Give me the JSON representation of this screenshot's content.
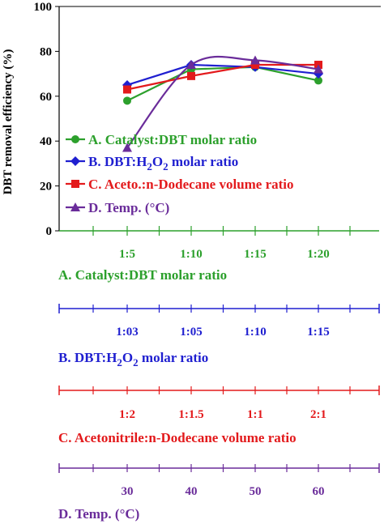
{
  "chart_data": {
    "type": "line",
    "ylabel": "DBT removal efficiency (%)",
    "ylim": [
      0,
      100
    ],
    "yticks": [
      "0",
      "20",
      "40",
      "60",
      "80",
      "100"
    ],
    "grid": false,
    "legend_position": "lower-left",
    "position_labels": [
      "1",
      "2",
      "3",
      "4"
    ],
    "axes": [
      {
        "id": "A",
        "title": "A. Catalyst:DBT molar ratio",
        "color": "#2ca02c",
        "tick_labels": [
          "1:5",
          "1:10",
          "1:15",
          "1:20"
        ]
      },
      {
        "id": "B",
        "title_main": "B. DBT:H",
        "title_sub1": "2",
        "title_mid": "O",
        "title_sub2": "2",
        "title_end": " molar ratio",
        "color": "#1f1fd0",
        "tick_labels": [
          "1:03",
          "1:05",
          "1:10",
          "1:15"
        ]
      },
      {
        "id": "C",
        "title": "C. Acetonitrile:n-Dodecane volume ratio",
        "color": "#e31a1c",
        "tick_labels": [
          "1:2",
          "1:1.5",
          "1:1",
          "2:1"
        ]
      },
      {
        "id": "D",
        "title": "D. Temp. (°C)",
        "color": "#6a2c9a",
        "tick_labels": [
          "30",
          "40",
          "50",
          "60"
        ]
      }
    ],
    "series": [
      {
        "name": "A. Catalyst:DBT molar ratio",
        "color": "#2ca02c",
        "marker": "circle",
        "smooth": false,
        "values": [
          58,
          72,
          73,
          67
        ]
      },
      {
        "name_main": "B. DBT:H",
        "name_sub1": "2",
        "name_mid": "O",
        "name_sub2": "2",
        "name_end": " molar ratio",
        "color": "#1f1fd0",
        "marker": "diamond",
        "smooth": false,
        "values": [
          65,
          74,
          73,
          70
        ]
      },
      {
        "name": "C. Aceto.:n-Dodecane volume ratio",
        "color": "#e31a1c",
        "marker": "square",
        "smooth": false,
        "values": [
          63,
          69,
          74,
          74
        ]
      },
      {
        "name": "D. Temp. (°C)",
        "color": "#6a2c9a",
        "marker": "triangle",
        "smooth": true,
        "values": [
          37,
          74,
          76,
          72
        ]
      }
    ]
  }
}
